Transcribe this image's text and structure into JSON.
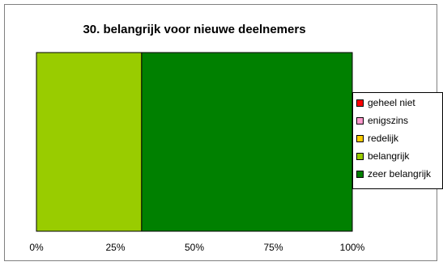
{
  "chart_data": {
    "type": "bar",
    "orientation": "horizontal",
    "stacking": "percent",
    "title": "30. belangrijk voor nieuwe deelnemers",
    "categories": [
      ""
    ],
    "series": [
      {
        "name": "geheel niet",
        "color": "#ff0000",
        "values": [
          0
        ]
      },
      {
        "name": "enigszins",
        "color": "#ff99cc",
        "values": [
          0
        ]
      },
      {
        "name": "redelijk",
        "color": "#ffcc00",
        "values": [
          0
        ]
      },
      {
        "name": "belangrijk",
        "color": "#99cc00",
        "values": [
          33.3
        ]
      },
      {
        "name": "zeer belangrijk",
        "color": "#008000",
        "values": [
          66.7
        ]
      }
    ],
    "xticks": [
      "0%",
      "25%",
      "50%",
      "75%",
      "100%"
    ],
    "xlim": [
      0,
      100
    ],
    "grid": false,
    "legend_position": "right"
  }
}
